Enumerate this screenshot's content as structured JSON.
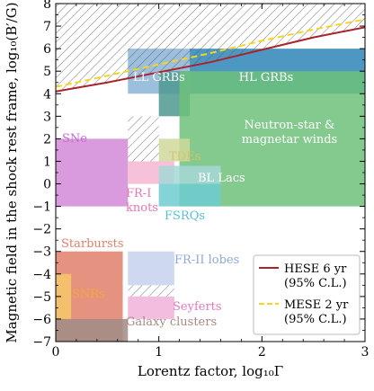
{
  "chart_data": {
    "type": "area",
    "title": "",
    "xlabel": "Lorentz factor, log₁₀Γ",
    "ylabel": "Magnetic field in the shock rest frame, log₁₀(B′/G)",
    "xlim": [
      0,
      3
    ],
    "ylim": [
      -7,
      8
    ],
    "x_ticks": [
      "0",
      "1",
      "2",
      "3"
    ],
    "y_ticks": [
      "−7",
      "−6",
      "−5",
      "−4",
      "−3",
      "−2",
      "−1",
      "0",
      "1",
      "2",
      "3",
      "4",
      "5",
      "6",
      "7",
      "8"
    ],
    "legend": {
      "placement": "lower-right",
      "entries": [
        {
          "label": "HESE 6 yr",
          "sublabel": "(95% C.L.)",
          "color": "#a8232a",
          "style": "solid"
        },
        {
          "label": "MESE 2 yr",
          "sublabel": "(95% C.L.)",
          "color": "#f5d51d",
          "style": "dashed"
        }
      ]
    },
    "series": [
      {
        "name": "HESE 6 yr",
        "color": "#a8232a",
        "style": "solid",
        "x": [
          0,
          0.5,
          1,
          1.5,
          2,
          2.5,
          3
        ],
        "y": [
          4.1,
          4.5,
          4.95,
          5.4,
          5.95,
          6.5,
          6.95
        ]
      },
      {
        "name": "MESE 2 yr",
        "color": "#f5d51d",
        "style": "dashed",
        "x": [
          0,
          0.5,
          1,
          1.5,
          2,
          2.5,
          3
        ],
        "y": [
          4.3,
          4.8,
          5.3,
          5.8,
          6.35,
          6.85,
          7.3
        ]
      }
    ],
    "regions": [
      {
        "name": "SNe",
        "label": "SNe",
        "x": [
          0,
          0.7
        ],
        "y": [
          -1,
          2
        ],
        "color": "#d28ad8",
        "label_color": "#c569d0"
      },
      {
        "name": "LL GRBs",
        "label": "LL GRBs",
        "x": [
          0.7,
          1.3
        ],
        "y": [
          4,
          6
        ],
        "color": "#8ab4d7",
        "label_color": "#ffffff"
      },
      {
        "name": "LL GRBs inner",
        "label": "",
        "x": [
          1.0,
          1.3
        ],
        "y": [
          3,
          5
        ],
        "color": "#4f998f",
        "label_color": ""
      },
      {
        "name": "HL GRBs",
        "label": "HL GRBs",
        "x": [
          1.3,
          3.0
        ],
        "y": [
          4,
          6
        ],
        "color": "#2d86b8",
        "label_color": "#ffffff"
      },
      {
        "name": "Neutron-star & magnetar winds",
        "label": "Neutron-star & magnetar winds",
        "x": [
          1.2,
          3.0
        ],
        "y": [
          -1,
          5
        ],
        "color": "#6fc17b",
        "label_color": "#ffffff"
      },
      {
        "name": "TDEs",
        "label": "TDEs",
        "x": [
          1.0,
          1.3
        ],
        "y": [
          1,
          2
        ],
        "color": "#cfd99c",
        "label_color": "#d6c36a"
      },
      {
        "name": "FR-I knots",
        "label": "FR-I knots",
        "x": [
          0.7,
          1.15
        ],
        "y": [
          0,
          1
        ],
        "color": "#f6b6d4",
        "label_color": "#ec74b4"
      },
      {
        "name": "BL Lacs",
        "label": "BL Lacs",
        "x": [
          1.0,
          1.6
        ],
        "y": [
          0,
          0.8
        ],
        "color": "#a5d8d6",
        "label_color": "#ffffff"
      },
      {
        "name": "FSRQs",
        "label": "FSRQs",
        "x": [
          1.0,
          1.6
        ],
        "y": [
          -1,
          0
        ],
        "color": "#6dcbd0",
        "label_color": "#5bbfd0"
      },
      {
        "name": "Starbursts",
        "label": "Starbursts",
        "x": [
          0,
          0.65
        ],
        "y": [
          -7,
          -3
        ],
        "color": "#e07f6a",
        "label_color": "#e07f6a"
      },
      {
        "name": "SNRs",
        "label": "SNRs",
        "x": [
          0,
          0.15
        ],
        "y": [
          -6,
          -4
        ],
        "color": "#f8c86b",
        "label_color": "#f2a93b"
      },
      {
        "name": "Galaxy clusters",
        "label": "Galaxy clusters",
        "x": [
          0,
          0.7
        ],
        "y": [
          -7,
          -6
        ],
        "color": "#a08c85",
        "label_color": "#a88a80"
      },
      {
        "name": "FR-II lobes",
        "label": "FR-II lobes",
        "x": [
          0.7,
          1.15
        ],
        "y": [
          -4.5,
          -3
        ],
        "color": "#c6d1ec",
        "label_color": "#8fa8d9"
      },
      {
        "name": "Seyferts",
        "label": "Seyferts",
        "x": [
          0.7,
          1.15
        ],
        "y": [
          -6,
          -5
        ],
        "color": "#f1b2d9",
        "label_color": "#e57ac1"
      }
    ],
    "excluded_hatched_regions": [
      {
        "x": [
          0,
          3
        ],
        "y_from_curve": "HESE 6 yr",
        "y_to": 8
      },
      {
        "x": [
          0.7,
          1.0
        ],
        "y": [
          1,
          3
        ]
      },
      {
        "x": [
          0.7,
          1.15
        ],
        "y": [
          -5,
          -4.5
        ]
      }
    ],
    "grid": false
  }
}
